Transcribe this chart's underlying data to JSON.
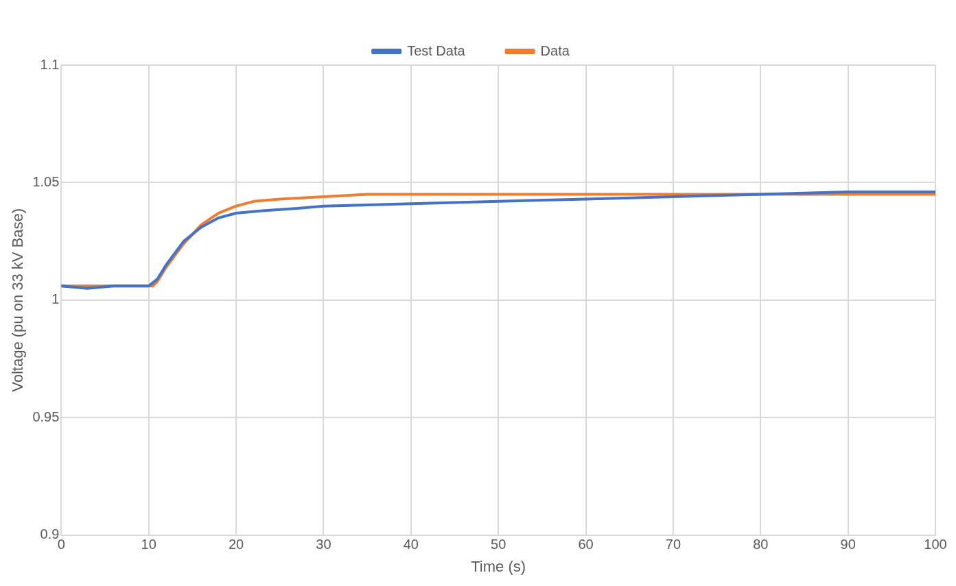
{
  "chart_data": {
    "type": "line",
    "xlabel": "Time (s)",
    "ylabel": "Voltage (pu on 33 kV Base)",
    "xlim": [
      0,
      100
    ],
    "xticks": [
      0,
      10,
      20,
      30,
      40,
      50,
      60,
      70,
      80,
      90,
      100
    ],
    "ylim": [
      0.9,
      1.1
    ],
    "yticks": [
      0.9,
      0.95,
      1,
      1.05,
      1.1
    ],
    "grid": true,
    "legend": "top",
    "marker": "none",
    "line_style": "solid",
    "series": [
      {
        "name": "Test Data",
        "color": "#4472c4",
        "x": [
          0,
          3,
          6,
          10,
          11,
          12,
          13,
          14,
          16,
          18,
          20,
          23,
          27,
          30,
          40,
          50,
          60,
          70,
          80,
          90,
          100
        ],
        "values": [
          1.006,
          1.005,
          1.006,
          1.006,
          1.009,
          1.015,
          1.02,
          1.025,
          1.031,
          1.035,
          1.037,
          1.038,
          1.039,
          1.04,
          1.041,
          1.042,
          1.043,
          1.044,
          1.045,
          1.046,
          1.046
        ]
      },
      {
        "name": "Data",
        "color": "#ed7d31",
        "x": [
          0,
          5,
          10,
          10.5,
          11,
          12,
          13,
          14,
          16,
          18,
          20,
          22,
          25,
          30,
          35,
          50,
          70,
          90,
          100
        ],
        "values": [
          1.006,
          1.006,
          1.006,
          1.006,
          1.008,
          1.014,
          1.019,
          1.024,
          1.032,
          1.037,
          1.04,
          1.042,
          1.043,
          1.044,
          1.045,
          1.045,
          1.045,
          1.045,
          1.045
        ]
      }
    ]
  }
}
